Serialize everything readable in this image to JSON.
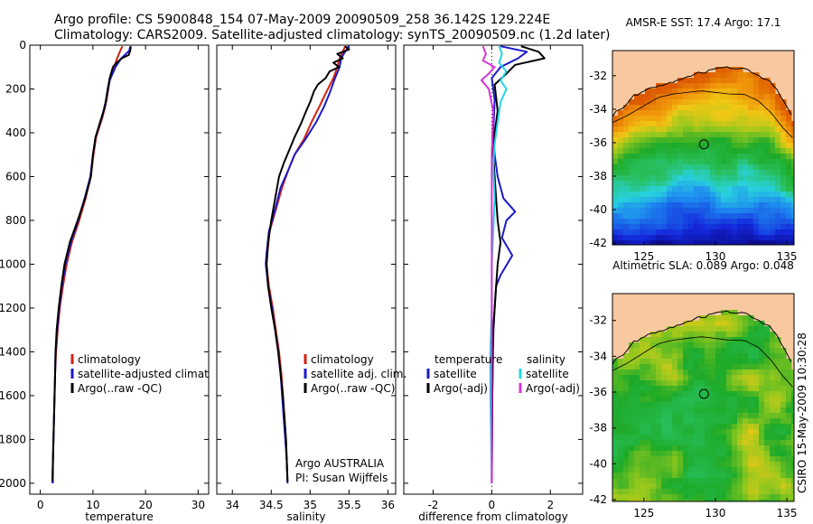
{
  "title_line1": "Argo profile: CS 5900848_154 07-May-2009 20090509_258 36.142S 129.224E",
  "title_line2": "Climatology: CARS2009. Satellite-adjusted climatology: synTS_20090509.nc (1.2d later)",
  "credit": "CSIRO 15-May-2009 10:30:28",
  "colors": {
    "climatology": "#d42010",
    "satellite": "#1a1acc",
    "argo": "#000000",
    "sal_satellite": "#22d4e6",
    "sal_argo": "#d633d6",
    "land": "#f8c8a0"
  },
  "chart_data": [
    {
      "type": "line",
      "name": "temperature-profile",
      "xlabel": "temperature",
      "xlim": [
        -2,
        32
      ],
      "ylim": [
        2050,
        0
      ],
      "xticks": [
        0,
        10,
        20,
        30
      ],
      "yticks": [
        0,
        200,
        400,
        600,
        800,
        1000,
        1200,
        1400,
        1600,
        1800,
        2000
      ],
      "legend": [
        "climatology",
        "satellite-adjusted climatology",
        "Argo(..raw -QC)"
      ],
      "series": [
        {
          "name": "climatology",
          "color": "#d42010",
          "points": [
            [
              15.6,
              5
            ],
            [
              15.2,
              25
            ],
            [
              14.6,
              60
            ],
            [
              14.0,
              100
            ],
            [
              13.2,
              160
            ],
            [
              12.6,
              250
            ],
            [
              11.8,
              330
            ],
            [
              10.6,
              420
            ],
            [
              10.1,
              500
            ],
            [
              9.6,
              600
            ],
            [
              8.6,
              700
            ],
            [
              7.4,
              800
            ],
            [
              6.0,
              900
            ],
            [
              5.0,
              1000
            ],
            [
              4.3,
              1100
            ],
            [
              3.7,
              1200
            ],
            [
              3.3,
              1300
            ],
            [
              3.0,
              1400
            ],
            [
              2.8,
              1500
            ],
            [
              2.7,
              1600
            ],
            [
              2.6,
              1700
            ],
            [
              2.5,
              1800
            ],
            [
              2.4,
              1900
            ],
            [
              2.4,
              2000
            ]
          ]
        },
        {
          "name": "satellite-adjusted climatology",
          "color": "#1a1acc",
          "points": [
            [
              17.1,
              5
            ],
            [
              16.9,
              25
            ],
            [
              15.4,
              60
            ],
            [
              14.3,
              100
            ],
            [
              13.2,
              160
            ],
            [
              12.5,
              250
            ],
            [
              11.7,
              330
            ],
            [
              10.5,
              420
            ],
            [
              10.0,
              500
            ],
            [
              9.5,
              600
            ],
            [
              8.4,
              700
            ],
            [
              7.2,
              800
            ],
            [
              5.8,
              900
            ],
            [
              4.8,
              1000
            ],
            [
              4.1,
              1100
            ],
            [
              3.6,
              1200
            ],
            [
              3.2,
              1300
            ],
            [
              2.9,
              1400
            ],
            [
              2.8,
              1500
            ],
            [
              2.7,
              1600
            ],
            [
              2.6,
              1700
            ],
            [
              2.5,
              1800
            ],
            [
              2.4,
              1900
            ],
            [
              2.3,
              2000
            ]
          ]
        },
        {
          "name": "Argo(..raw -QC)",
          "color": "#000000",
          "points": [
            [
              17.2,
              5
            ],
            [
              17.1,
              25
            ],
            [
              16.8,
              45
            ],
            [
              15.5,
              60
            ],
            [
              14.5,
              80
            ],
            [
              13.8,
              100
            ],
            [
              13.2,
              150
            ],
            [
              12.8,
              200
            ],
            [
              12.3,
              280
            ],
            [
              11.5,
              340
            ],
            [
              10.5,
              420
            ],
            [
              10.0,
              500
            ],
            [
              9.6,
              600
            ],
            [
              8.5,
              700
            ],
            [
              7.1,
              800
            ],
            [
              5.6,
              900
            ],
            [
              4.6,
              1000
            ],
            [
              4.0,
              1100
            ],
            [
              3.5,
              1200
            ],
            [
              3.1,
              1300
            ],
            [
              2.9,
              1400
            ],
            [
              2.8,
              1500
            ],
            [
              2.7,
              1600
            ],
            [
              2.6,
              1700
            ],
            [
              2.5,
              1800
            ],
            [
              2.4,
              1900
            ],
            [
              2.3,
              1990
            ]
          ]
        }
      ]
    },
    {
      "type": "line",
      "name": "salinity-profile",
      "xlabel": "salinity",
      "xlim": [
        33.8,
        36.1
      ],
      "ylim": [
        2050,
        0
      ],
      "xticks": [
        34,
        34.5,
        35,
        35.5,
        36
      ],
      "legend": [
        "climatology",
        "satellite adj. clim.",
        "Argo(..raw -QC)"
      ],
      "annotation": [
        "Argo AUSTRALIA",
        "PI: Susan Wijffels"
      ],
      "series": [
        {
          "name": "climatology",
          "color": "#d42010",
          "points": [
            [
              35.45,
              5
            ],
            [
              35.42,
              30
            ],
            [
              35.38,
              60
            ],
            [
              35.35,
              100
            ],
            [
              35.3,
              150
            ],
            [
              35.2,
              220
            ],
            [
              35.12,
              280
            ],
            [
              35.02,
              350
            ],
            [
              34.92,
              430
            ],
            [
              34.8,
              500
            ],
            [
              34.72,
              570
            ],
            [
              34.64,
              650
            ],
            [
              34.56,
              750
            ],
            [
              34.48,
              850
            ],
            [
              34.45,
              950
            ],
            [
              34.44,
              1000
            ],
            [
              34.47,
              1100
            ],
            [
              34.52,
              1200
            ],
            [
              34.56,
              1300
            ],
            [
              34.6,
              1400
            ],
            [
              34.63,
              1500
            ],
            [
              34.65,
              1600
            ],
            [
              34.67,
              1700
            ],
            [
              34.69,
              1800
            ],
            [
              34.7,
              1900
            ],
            [
              34.71,
              2000
            ]
          ]
        },
        {
          "name": "satellite adj. clim.",
          "color": "#1a1acc",
          "points": [
            [
              35.5,
              5
            ],
            [
              35.45,
              30
            ],
            [
              35.4,
              60
            ],
            [
              35.38,
              100
            ],
            [
              35.32,
              150
            ],
            [
              35.25,
              220
            ],
            [
              35.18,
              280
            ],
            [
              35.08,
              350
            ],
            [
              34.94,
              430
            ],
            [
              34.8,
              500
            ],
            [
              34.72,
              570
            ],
            [
              34.62,
              650
            ],
            [
              34.55,
              750
            ],
            [
              34.47,
              850
            ],
            [
              34.44,
              950
            ],
            [
              34.43,
              1000
            ],
            [
              34.46,
              1100
            ],
            [
              34.51,
              1200
            ],
            [
              34.55,
              1300
            ],
            [
              34.59,
              1400
            ],
            [
              34.62,
              1500
            ],
            [
              34.64,
              1600
            ],
            [
              34.66,
              1700
            ],
            [
              34.68,
              1800
            ],
            [
              34.7,
              1900
            ],
            [
              34.71,
              2000
            ]
          ]
        },
        {
          "name": "Argo(..raw -QC)",
          "color": "#000000",
          "points": [
            [
              35.45,
              5
            ],
            [
              35.5,
              20
            ],
            [
              35.35,
              40
            ],
            [
              35.42,
              60
            ],
            [
              35.3,
              80
            ],
            [
              35.37,
              100
            ],
            [
              35.25,
              120
            ],
            [
              35.2,
              150
            ],
            [
              35.1,
              180
            ],
            [
              35.05,
              210
            ],
            [
              35.0,
              260
            ],
            [
              34.95,
              300
            ],
            [
              34.88,
              360
            ],
            [
              34.8,
              420
            ],
            [
              34.73,
              480
            ],
            [
              34.66,
              540
            ],
            [
              34.6,
              600
            ],
            [
              34.55,
              700
            ],
            [
              34.5,
              800
            ],
            [
              34.46,
              900
            ],
            [
              34.44,
              1000
            ],
            [
              34.46,
              1100
            ],
            [
              34.5,
              1200
            ],
            [
              34.55,
              1300
            ],
            [
              34.59,
              1400
            ],
            [
              34.62,
              1500
            ],
            [
              34.65,
              1600
            ],
            [
              34.67,
              1700
            ],
            [
              34.69,
              1800
            ],
            [
              34.7,
              1900
            ],
            [
              34.71,
              1990
            ]
          ]
        }
      ]
    },
    {
      "type": "line",
      "name": "difference-profile",
      "xlabel": "difference from climatology",
      "xlim": [
        -3,
        3.1
      ],
      "ylim": [
        2050,
        0
      ],
      "xticks": [
        -2,
        0,
        2
      ],
      "legend_groups": [
        {
          "heading": "temperature",
          "items": [
            "satellite",
            "Argo(-adj)"
          ]
        },
        {
          "heading": "salinity",
          "items": [
            "satellite",
            "Argo(-adj)"
          ]
        }
      ],
      "series": [
        {
          "name": "temperature satellite",
          "color": "#1a1acc",
          "points": [
            [
              0.3,
              5
            ],
            [
              1.2,
              30
            ],
            [
              0.9,
              60
            ],
            [
              0.3,
              100
            ],
            [
              0.0,
              150
            ],
            [
              0.1,
              250
            ],
            [
              0.05,
              400
            ],
            [
              0.1,
              500
            ],
            [
              0.2,
              600
            ],
            [
              0.4,
              700
            ],
            [
              0.8,
              760
            ],
            [
              0.5,
              800
            ],
            [
              0.35,
              880
            ],
            [
              0.7,
              960
            ],
            [
              0.3,
              1050
            ],
            [
              0.15,
              1100
            ],
            [
              0.1,
              1200
            ],
            [
              0.06,
              1300
            ],
            [
              0.04,
              1400
            ],
            [
              0.02,
              1600
            ],
            [
              0.01,
              1800
            ],
            [
              0.0,
              2000
            ]
          ]
        },
        {
          "name": "temperature Argo(-adj)",
          "color": "#000000",
          "points": [
            [
              1.0,
              5
            ],
            [
              1.6,
              30
            ],
            [
              1.8,
              60
            ],
            [
              0.8,
              90
            ],
            [
              0.5,
              130
            ],
            [
              0.1,
              180
            ],
            [
              0.2,
              300
            ],
            [
              0.1,
              400
            ],
            [
              0.05,
              500
            ],
            [
              0.1,
              600
            ],
            [
              0.15,
              700
            ],
            [
              0.2,
              800
            ],
            [
              0.3,
              900
            ],
            [
              0.2,
              1000
            ],
            [
              0.15,
              1100
            ],
            [
              0.1,
              1200
            ],
            [
              0.05,
              1300
            ],
            [
              0.03,
              1400
            ],
            [
              0.02,
              1600
            ],
            [
              0.01,
              1800
            ],
            [
              0.0,
              2000
            ]
          ]
        },
        {
          "name": "salinity satellite",
          "color": "#22d4e6",
          "points": [
            [
              0.25,
              5
            ],
            [
              0.35,
              40
            ],
            [
              0.25,
              80
            ],
            [
              0.5,
              120
            ],
            [
              0.3,
              160
            ],
            [
              0.5,
              200
            ],
            [
              0.3,
              260
            ],
            [
              0.2,
              350
            ],
            [
              0.1,
              450
            ],
            [
              0.05,
              550
            ],
            [
              0.1,
              700
            ],
            [
              0.05,
              850
            ],
            [
              0.0,
              1000
            ],
            [
              0.0,
              1200
            ],
            [
              -0.05,
              1400
            ],
            [
              -0.05,
              1600
            ],
            [
              -0.02,
              1800
            ],
            [
              0.0,
              2000
            ]
          ]
        },
        {
          "name": "salinity Argo(-adj)",
          "color": "#d633d6",
          "points": [
            [
              -0.3,
              5
            ],
            [
              -0.2,
              40
            ],
            [
              -0.3,
              70
            ],
            [
              0.1,
              100
            ],
            [
              -0.1,
              130
            ],
            [
              -0.35,
              160
            ],
            [
              -0.1,
              200
            ],
            [
              0.05,
              300
            ],
            [
              0.0,
              500
            ],
            [
              0.0,
              800
            ],
            [
              0.0,
              1000
            ],
            [
              0.0,
              1400
            ],
            [
              0.0,
              1800
            ],
            [
              0.0,
              2000
            ]
          ]
        }
      ]
    },
    {
      "type": "heatmap",
      "name": "sst-map",
      "title": "AMSR-E SST: 17.4 Argo: 17.1",
      "xlim": [
        122.8,
        135.5
      ],
      "ylim": [
        -42.1,
        -30.5
      ],
      "xticks": [
        125,
        130,
        135
      ],
      "yticks": [
        -32,
        -34,
        -36,
        -38,
        -40,
        -42
      ],
      "argo_position": [
        129.2,
        -36.1
      ]
    },
    {
      "type": "heatmap",
      "name": "sla-map",
      "title": "Altimetric SLA: 0.089 Argo: 0.048",
      "xlim": [
        122.8,
        135.5
      ],
      "ylim": [
        -42.1,
        -30.5
      ],
      "xticks": [
        125,
        130,
        135
      ],
      "yticks": [
        -32,
        -34,
        -36,
        -38,
        -40,
        -42
      ],
      "argo_position": [
        129.2,
        -36.1
      ]
    }
  ]
}
